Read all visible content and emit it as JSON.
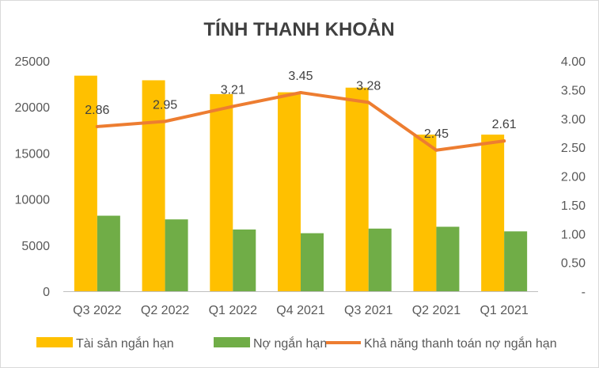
{
  "chart_data": {
    "type": "bar",
    "title": "TÍNH THANH KHOẢN",
    "categories": [
      "Q3 2022",
      "Q2 2022",
      "Q1 2022",
      "Q4 2021",
      "Q3 2021",
      "Q2 2021",
      "Q1 2021"
    ],
    "series": [
      {
        "name": "Tài sản ngắn hạn",
        "type": "bar",
        "axis": "left",
        "color": "#FFC000",
        "values": [
          23400,
          22900,
          21400,
          21600,
          22100,
          17000,
          17000
        ]
      },
      {
        "name": "Nợ ngắn hạn",
        "type": "bar",
        "axis": "left",
        "color": "#70AD47",
        "values": [
          8200,
          7800,
          6700,
          6300,
          6800,
          7000,
          6500
        ]
      },
      {
        "name": "Khả năng thanh toán nợ ngắn hạn",
        "type": "line",
        "axis": "right",
        "color": "#ED7D31",
        "values": [
          2.86,
          2.95,
          3.21,
          3.45,
          3.28,
          2.45,
          2.61
        ],
        "labels": [
          "2.86",
          "2.95",
          "3.21",
          "3.45",
          "3.28",
          "2.45",
          "2.61"
        ]
      }
    ],
    "y_left": {
      "min": 0,
      "max": 25000,
      "ticks": [
        "0",
        "5000",
        "10000",
        "15000",
        "20000",
        "25000"
      ]
    },
    "y_right": {
      "min": 0,
      "max": 4,
      "ticks": [
        "-",
        "0.50",
        "1.00",
        "1.50",
        "2.00",
        "2.50",
        "3.00",
        "3.50",
        "4.00"
      ]
    },
    "grid": false,
    "legend": "bottom"
  }
}
